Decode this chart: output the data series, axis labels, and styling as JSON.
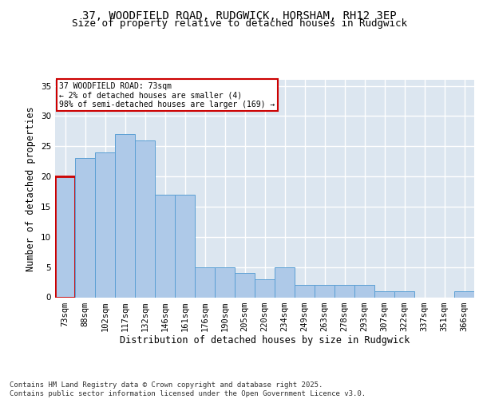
{
  "title_line1": "37, WOODFIELD ROAD, RUDGWICK, HORSHAM, RH12 3EP",
  "title_line2": "Size of property relative to detached houses in Rudgwick",
  "xlabel": "Distribution of detached houses by size in Rudgwick",
  "ylabel": "Number of detached properties",
  "categories": [
    "73sqm",
    "88sqm",
    "102sqm",
    "117sqm",
    "132sqm",
    "146sqm",
    "161sqm",
    "176sqm",
    "190sqm",
    "205sqm",
    "220sqm",
    "234sqm",
    "249sqm",
    "263sqm",
    "278sqm",
    "293sqm",
    "307sqm",
    "322sqm",
    "337sqm",
    "351sqm",
    "366sqm"
  ],
  "values": [
    20,
    23,
    24,
    27,
    26,
    17,
    17,
    5,
    5,
    4,
    3,
    5,
    2,
    2,
    2,
    2,
    1,
    1,
    0,
    0,
    1
  ],
  "highlight_index": 0,
  "bar_color": "#aec9e8",
  "bar_edge_color": "#5a9fd4",
  "highlight_bar_edge_color": "#cc0000",
  "bg_color": "#dce6f0",
  "grid_color": "#ffffff",
  "annotation_box_text": "37 WOODFIELD ROAD: 73sqm\n← 2% of detached houses are smaller (4)\n98% of semi-detached houses are larger (169) →",
  "annotation_box_color": "#cc0000",
  "footer_text": "Contains HM Land Registry data © Crown copyright and database right 2025.\nContains public sector information licensed under the Open Government Licence v3.0.",
  "ylim": [
    0,
    36
  ],
  "yticks": [
    0,
    5,
    10,
    15,
    20,
    25,
    30,
    35
  ],
  "title_fontsize": 10,
  "subtitle_fontsize": 9,
  "axis_label_fontsize": 8.5,
  "tick_fontsize": 7.5,
  "footer_fontsize": 6.5
}
